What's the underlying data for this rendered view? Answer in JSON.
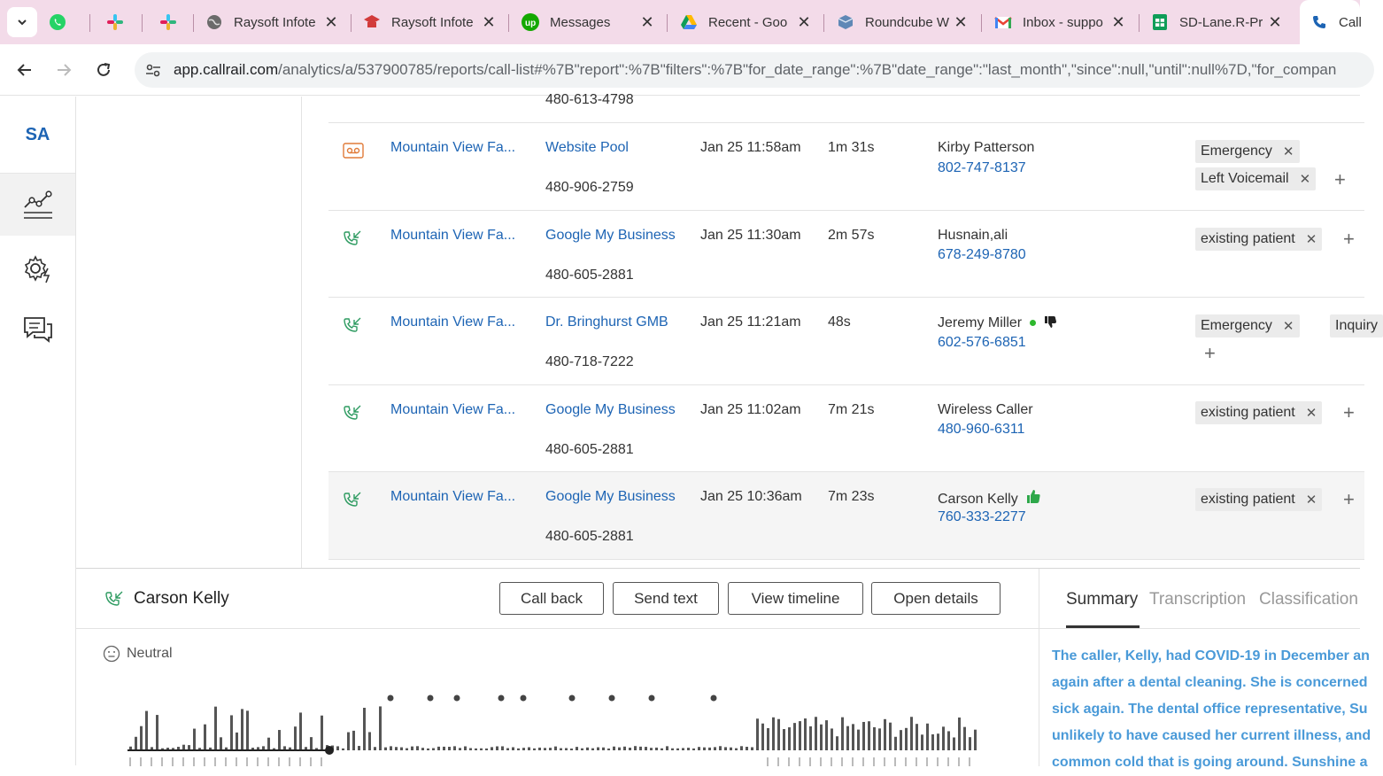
{
  "browser": {
    "tabs": [
      {
        "title": "",
        "icon": "whatsapp-icon"
      },
      {
        "title": "",
        "icon": "slack-icon"
      },
      {
        "title": "",
        "icon": "slack-icon"
      },
      {
        "title": "Raysoft Infote",
        "icon": "globe-icon"
      },
      {
        "title": "Raysoft Infote",
        "icon": "school-icon"
      },
      {
        "title": "Messages",
        "icon": "upwork-icon"
      },
      {
        "title": "Recent - Goo",
        "icon": "drive-icon"
      },
      {
        "title": "Roundcube W",
        "icon": "roundcube-icon"
      },
      {
        "title": "Inbox - suppo",
        "icon": "gmail-icon"
      },
      {
        "title": "SD-Lane.R-Pr",
        "icon": "sheets-icon"
      },
      {
        "title": "Call",
        "icon": "phone-icon"
      }
    ],
    "url_host": "app.callrail.com",
    "url_rest": "/analytics/a/537900785/reports/call-list#%7B\"report\":%7B\"filters\":%7B\"for_date_range\":%7B\"date_range\":\"last_month\",\"since\":null,\"until\":null%7D,\"for_compan"
  },
  "sidebar": {
    "initials": "SA",
    "items": [
      "analytics-icon",
      "settings-icon",
      "conversations-icon"
    ]
  },
  "calls": {
    "partial_top_number": "480-613-4798",
    "rows": [
      {
        "type": "voicemail",
        "company": "Mountain View Fa...",
        "source": "Website Pool",
        "tracking": "480-906-2759",
        "date": "Jan 25 11:58am",
        "duration": "1m 31s",
        "caller": "Kirby Patterson",
        "caller_phone": "802-747-8137",
        "tags": [
          "Emergency",
          "Left Voicemail"
        ],
        "sentiment": ""
      },
      {
        "type": "inbound",
        "company": "Mountain View Fa...",
        "source": "Google My Business",
        "tracking": "480-605-2881",
        "date": "Jan 25 11:30am",
        "duration": "2m 57s",
        "caller": "Husnain,ali",
        "caller_phone": "678-249-8780",
        "tags": [
          "existing patient"
        ],
        "sentiment": ""
      },
      {
        "type": "inbound",
        "company": "Mountain View Fa...",
        "source": "Dr. Bringhurst GMB",
        "tracking": "480-718-7222",
        "date": "Jan 25 11:21am",
        "duration": "48s",
        "caller": "Jeremy Miller",
        "caller_phone": "602-576-6851",
        "tags": [
          "Emergency",
          "Inquiry"
        ],
        "sentiment": "thumbs-down"
      },
      {
        "type": "inbound",
        "company": "Mountain View Fa...",
        "source": "Google My Business",
        "tracking": "480-605-2881",
        "date": "Jan 25 11:02am",
        "duration": "7m 21s",
        "caller": "Wireless Caller",
        "caller_phone": "480-960-6311",
        "tags": [
          "existing patient"
        ],
        "sentiment": ""
      },
      {
        "type": "inbound",
        "company": "Mountain View Fa...",
        "source": "Google My Business",
        "tracking": "480-605-2881",
        "date": "Jan 25 10:36am",
        "duration": "7m 23s",
        "caller": "Carson Kelly",
        "caller_phone": "760-333-2277",
        "tags": [
          "existing patient"
        ],
        "sentiment": "thumbs-up"
      }
    ]
  },
  "detail": {
    "name": "Carson Kelly",
    "buttons": {
      "call_back": "Call back",
      "send_text": "Send text",
      "view_timeline": "View timeline",
      "open_details": "Open details"
    },
    "sentiment": "Neutral",
    "tabs": {
      "summary": "Summary",
      "transcription": "Transcription",
      "classification": "Classification"
    },
    "summary_lines": [
      "The caller, Kelly, had COVID-19 in December an",
      "again after a dental cleaning. She is concerned",
      "sick again. The dental office representative, Su",
      "unlikely to have caused her current illness, and",
      "common cold that is going around. Sunshine a"
    ],
    "colors": {
      "link": "#1d64b4",
      "summary_text": "#4a9ad8",
      "inbound_icon": "#2e9b61",
      "voicemail_icon": "#e07b39"
    }
  }
}
